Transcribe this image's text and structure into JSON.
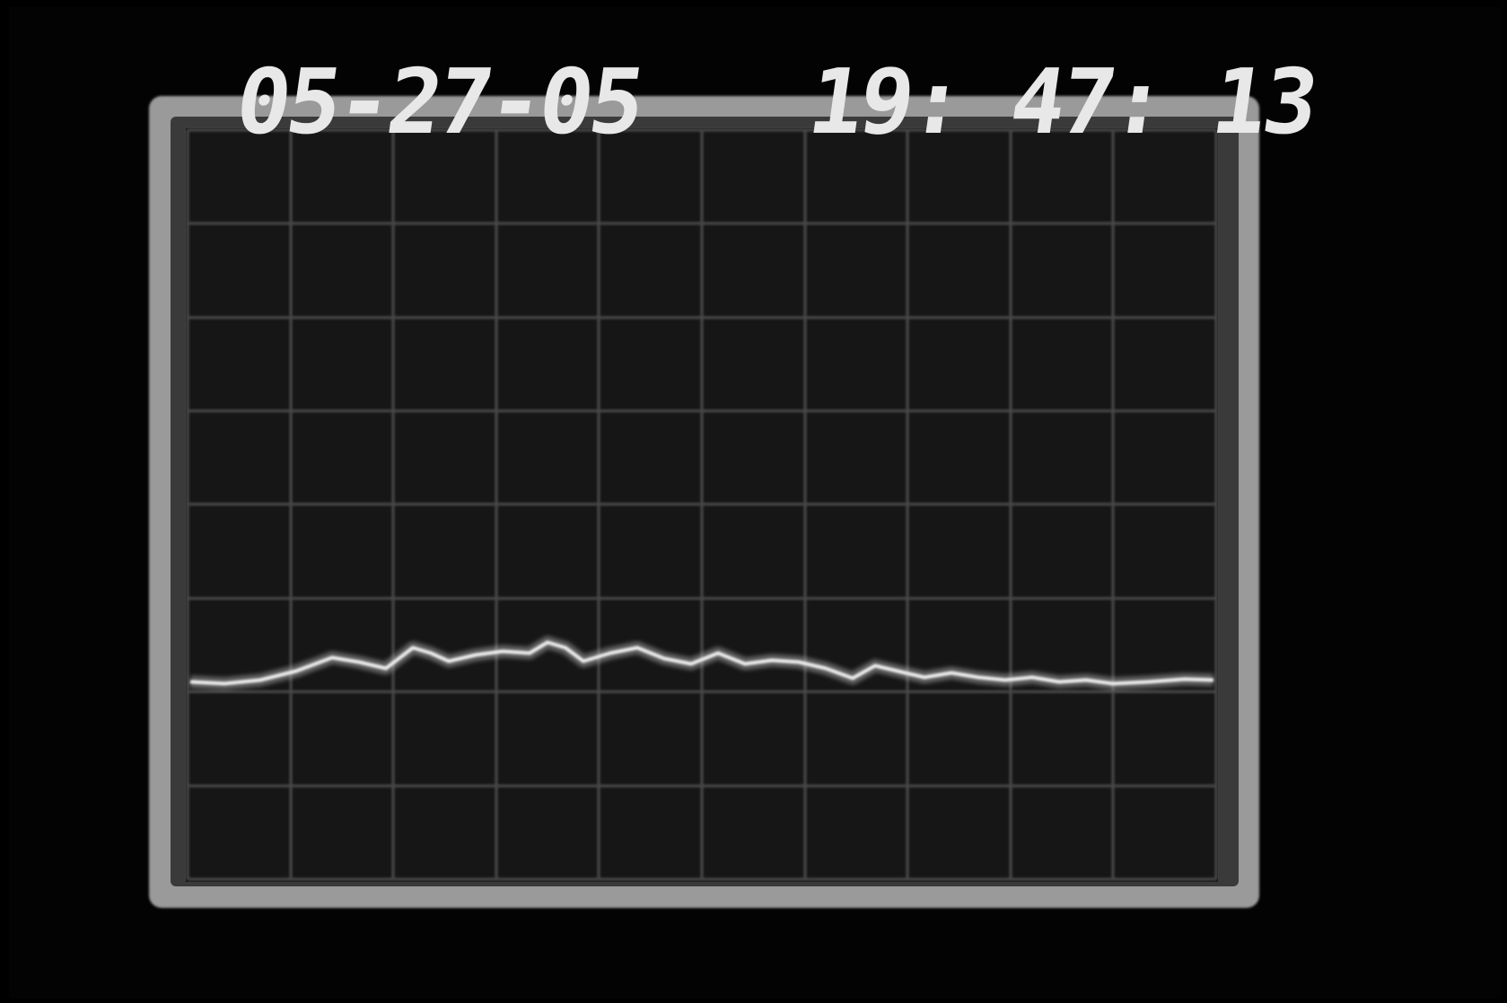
{
  "overlay": {
    "date": "05-27-05",
    "time": "19: 47: 13"
  }
}
